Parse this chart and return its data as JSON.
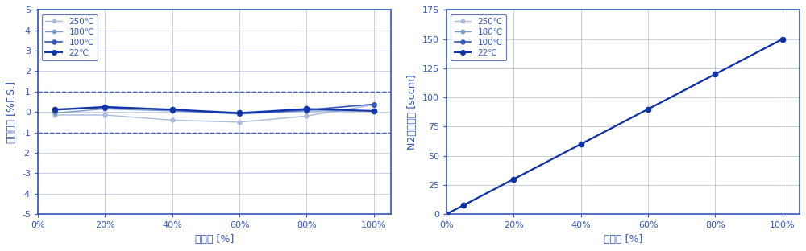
{
  "left_chart": {
    "series": {
      "250℃": {
        "x": [
          5,
          20,
          40,
          60,
          80,
          100
        ],
        "y": [
          -0.15,
          -0.15,
          -0.4,
          -0.5,
          -0.2,
          0.35
        ],
        "color": "#aabbdd",
        "linewidth": 1.0,
        "marker": "o",
        "markersize": 3.5
      },
      "180℃": {
        "x": [
          5,
          20,
          40,
          60,
          80,
          100
        ],
        "y": [
          -0.05,
          0.15,
          0.05,
          -0.1,
          0.05,
          0.05
        ],
        "color": "#7799cc",
        "linewidth": 1.0,
        "marker": "o",
        "markersize": 3.5
      },
      "100℃": {
        "x": [
          5,
          20,
          40,
          60,
          80,
          100
        ],
        "y": [
          0.1,
          0.22,
          0.1,
          -0.08,
          0.1,
          0.38
        ],
        "color": "#3355bb",
        "linewidth": 1.2,
        "marker": "o",
        "markersize": 4
      },
      "22℃": {
        "x": [
          5,
          20,
          40,
          60,
          80,
          100
        ],
        "y": [
          0.12,
          0.25,
          0.12,
          -0.05,
          0.15,
          0.05
        ],
        "color": "#1133aa",
        "linewidth": 1.5,
        "marker": "o",
        "markersize": 4.5
      }
    },
    "dashed_lines": [
      1.0,
      -1.0
    ],
    "dashed_color": "#3355bb",
    "ylim": [
      -5,
      5
    ],
    "yticks": [
      -5,
      -4,
      -3,
      -2,
      -1,
      0,
      1,
      2,
      3,
      4,
      5
    ],
    "xticks": [
      0,
      20,
      40,
      60,
      80,
      100
    ],
    "xlabel": "設定値 [%]",
    "ylabel": "流量精度 [%F.S.]",
    "grid_color": "#aabbdd",
    "bg_color": "#ffffff"
  },
  "right_chart": {
    "series": {
      "250℃": {
        "x": [
          0,
          5,
          20,
          40,
          60,
          80,
          100
        ],
        "y": [
          0,
          7.5,
          30,
          60,
          90,
          120,
          150
        ],
        "color": "#aabbdd",
        "linewidth": 1.0,
        "marker": "o",
        "markersize": 3.5
      },
      "180℃": {
        "x": [
          0,
          5,
          20,
          40,
          60,
          80,
          100
        ],
        "y": [
          0,
          7.5,
          30,
          60,
          90,
          120,
          150
        ],
        "color": "#7799cc",
        "linewidth": 1.0,
        "marker": "o",
        "markersize": 3.5
      },
      "100℃": {
        "x": [
          0,
          5,
          20,
          40,
          60,
          80,
          100
        ],
        "y": [
          0,
          7.5,
          30,
          60,
          90,
          120,
          150
        ],
        "color": "#3355bb",
        "linewidth": 1.2,
        "marker": "o",
        "markersize": 4
      },
      "22℃": {
        "x": [
          0,
          5,
          20,
          40,
          60,
          80,
          100
        ],
        "y": [
          0,
          7.5,
          30,
          60,
          90,
          120,
          150
        ],
        "color": "#1133aa",
        "linewidth": 1.5,
        "marker": "o",
        "markersize": 4.5
      }
    },
    "ylim": [
      0,
      175
    ],
    "yticks": [
      0,
      25,
      50,
      75,
      100,
      125,
      150,
      175
    ],
    "xticks": [
      0,
      20,
      40,
      60,
      80,
      100
    ],
    "xlabel": "設定値 [%]",
    "ylabel": "N2ガス流量 [sccm]",
    "grid_color": "#aabbdd",
    "bg_color": "#ffffff"
  },
  "axis_color": "#3355bb",
  "tick_color": "#3355bb",
  "label_color": "#3355bb",
  "spine_color": "#3355bb"
}
